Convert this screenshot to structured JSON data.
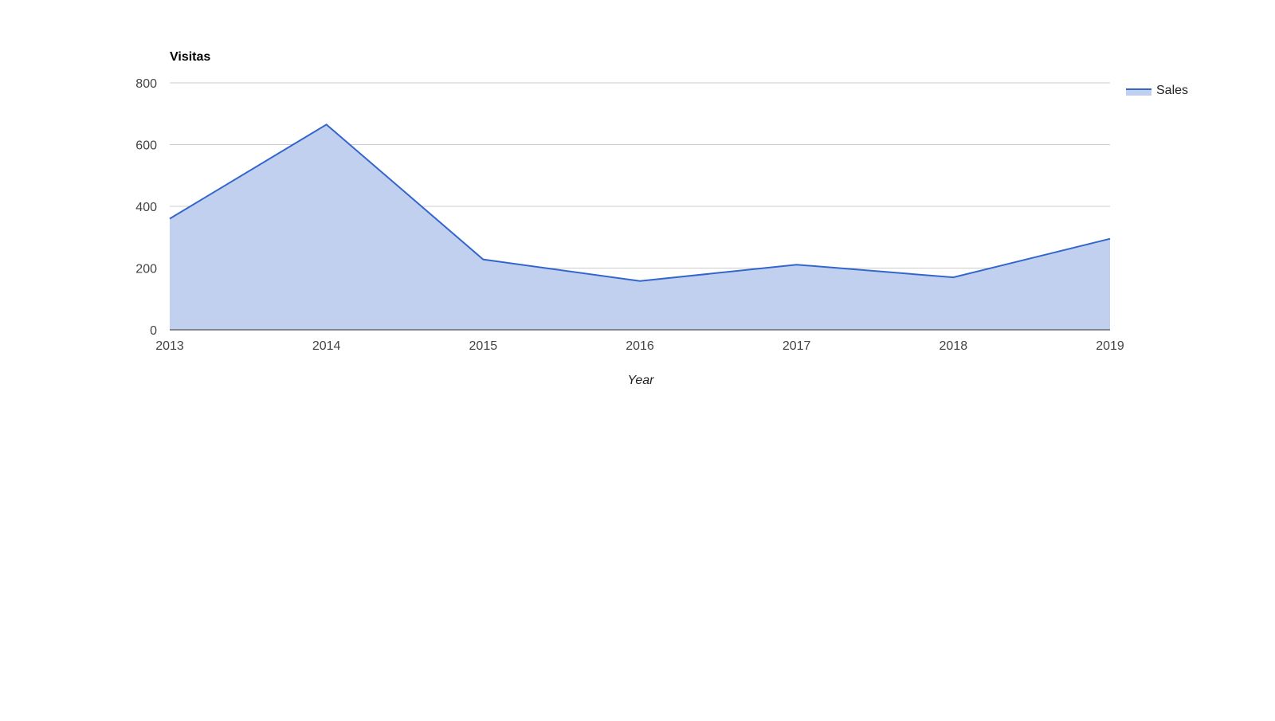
{
  "chart_data": {
    "type": "area",
    "title": "Visitas",
    "xlabel": "Year",
    "ylabel": "",
    "categories": [
      "2013",
      "2014",
      "2015",
      "2016",
      "2017",
      "2018",
      "2019"
    ],
    "series": [
      {
        "name": "Sales",
        "values": [
          360,
          665,
          228,
          158,
          211,
          170,
          295
        ],
        "line_color": "#3366cc",
        "fill_color": "#c2d0ef"
      }
    ],
    "ylim": [
      0,
      800
    ],
    "yticks": [
      0,
      200,
      400,
      600,
      800
    ],
    "grid": true,
    "legend_position": "right"
  }
}
